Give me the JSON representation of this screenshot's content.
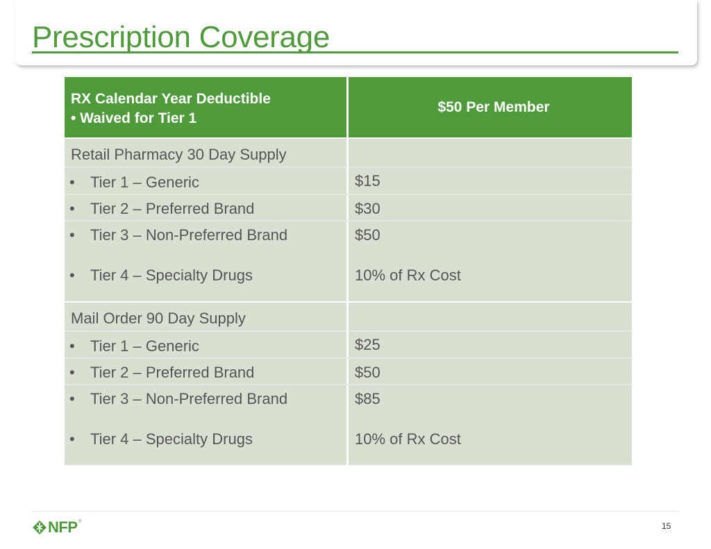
{
  "slide": {
    "title": "Prescription Coverage",
    "page_number": "15"
  },
  "colors": {
    "accent": "#4f9a3b",
    "cell_fill": "#d7e0d1",
    "text": "#555555"
  },
  "table": {
    "header": {
      "left_line1": "RX Calendar Year Deductible",
      "left_line2": "• Waived for Tier 1",
      "right": "$50 Per Member"
    },
    "sections": [
      {
        "title": "Retail Pharmacy 30 Day Supply",
        "rows": [
          {
            "bullet": "•",
            "label": "Tier 1 – Generic",
            "value": "$15"
          },
          {
            "bullet": "•",
            "label": "Tier 2 – Preferred Brand",
            "value": "$30"
          },
          {
            "bullet": "•",
            "label": "Tier 3 – Non-Preferred Brand",
            "value": "$50"
          },
          {
            "bullet": "•",
            "label": "Tier 4 – Specialty Drugs",
            "value": "10% of Rx Cost"
          }
        ]
      },
      {
        "title": "Mail Order 90 Day Supply",
        "rows": [
          {
            "bullet": "•",
            "label": "Tier 1 – Generic",
            "value": "$25"
          },
          {
            "bullet": "•",
            "label": "Tier 2 – Preferred Brand",
            "value": "$50"
          },
          {
            "bullet": "•",
            "label": "Tier 3 – Non-Preferred Brand",
            "value": "$85"
          },
          {
            "bullet": "•",
            "label": "Tier 4 – Specialty Drugs",
            "value": "10% of Rx Cost"
          }
        ]
      }
    ]
  },
  "footer": {
    "logo_text": "NFP",
    "logo_mark": "®",
    "logo_icon": "nfp-leaf-icon"
  }
}
